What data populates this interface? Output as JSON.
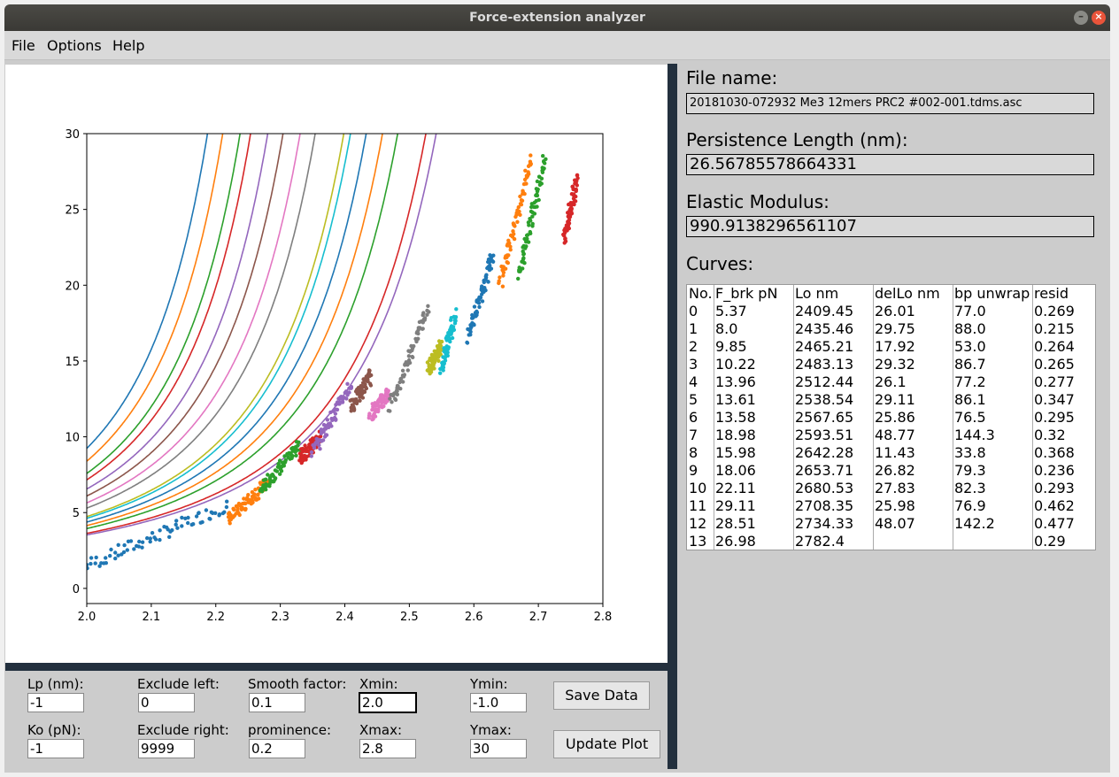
{
  "window": {
    "title": "Force-extension analyzer",
    "minimize_glyph": "–",
    "close_glyph": "×"
  },
  "menu": [
    "File",
    "Options",
    "Help"
  ],
  "chart_data": {
    "type": "scatter",
    "title": "",
    "xlabel": "",
    "ylabel": "",
    "xlim": [
      2.0,
      2.8
    ],
    "ylim": [
      -1.0,
      30
    ],
    "x_ticks": [
      "2.0",
      "2.1",
      "2.2",
      "2.3",
      "2.4",
      "2.5",
      "2.6",
      "2.7",
      "2.8"
    ],
    "y_ticks": [
      "0",
      "5",
      "10",
      "15",
      "20",
      "25",
      "30"
    ],
    "grid": false,
    "legend": "none",
    "series": [
      {
        "color": "#1f77b4",
        "x_range": [
          2.0,
          2.22
        ],
        "y_range": [
          1.5,
          5.5
        ],
        "Lo": 2.4095
      },
      {
        "color": "#ff7f0e",
        "x_range": [
          2.22,
          2.28
        ],
        "y_range": [
          4.5,
          7.0
        ],
        "Lo": 2.4355
      },
      {
        "color": "#2ca02c",
        "x_range": [
          2.27,
          2.33
        ],
        "y_range": [
          6.5,
          9.5
        ],
        "Lo": 2.4652
      },
      {
        "color": "#d62728",
        "x_range": [
          2.33,
          2.36
        ],
        "y_range": [
          8.5,
          10.0
        ],
        "Lo": 2.4831
      },
      {
        "color": "#9467bd",
        "x_range": [
          2.35,
          2.41
        ],
        "y_range": [
          9.0,
          13.5
        ],
        "Lo": 2.5124
      },
      {
        "color": "#8c564b",
        "x_range": [
          2.41,
          2.44
        ],
        "y_range": [
          12.0,
          14.0
        ],
        "Lo": 2.5385
      },
      {
        "color": "#e377c2",
        "x_range": [
          2.44,
          2.47
        ],
        "y_range": [
          11.5,
          13.0
        ],
        "Lo": 2.5677
      },
      {
        "color": "#7f7f7f",
        "x_range": [
          2.47,
          2.53
        ],
        "y_range": [
          12.0,
          18.5
        ],
        "Lo": 2.5935
      },
      {
        "color": "#bcbd22",
        "x_range": [
          2.53,
          2.55
        ],
        "y_range": [
          14.5,
          16.0
        ],
        "Lo": 2.6423
      },
      {
        "color": "#17becf",
        "x_range": [
          2.55,
          2.57
        ],
        "y_range": [
          14.5,
          18.0
        ],
        "Lo": 2.6537
      },
      {
        "color": "#1f77b4",
        "x_range": [
          2.59,
          2.63
        ],
        "y_range": [
          16.5,
          22.0
        ],
        "Lo": 2.6805
      },
      {
        "color": "#ff7f0e",
        "x_range": [
          2.64,
          2.69
        ],
        "y_range": [
          20.0,
          28.5
        ],
        "Lo": 2.7084
      },
      {
        "color": "#2ca02c",
        "x_range": [
          2.67,
          2.71
        ],
        "y_range": [
          20.5,
          28.5
        ],
        "Lo": 2.7343
      },
      {
        "color": "#d62728",
        "x_range": [
          2.74,
          2.76
        ],
        "y_range": [
          23.0,
          27.0
        ],
        "Lo": 2.7824
      },
      {
        "color": "#9467bd",
        "x_range": null,
        "y_range": null,
        "Lo": 2.8
      }
    ]
  },
  "controls": {
    "lp_label": "Lp (nm):",
    "lp_value": "-1",
    "ko_label": "Ko (pN):",
    "ko_value": "-1",
    "exclude_left_label": "Exclude left:",
    "exclude_left_value": "0",
    "exclude_right_label": "Exclude right:",
    "exclude_right_value": "9999",
    "smooth_label": "Smooth factor:",
    "smooth_value": "0.1",
    "prominence_label": "prominence:",
    "prominence_value": "0.2",
    "xmin_label": "Xmin:",
    "xmin_value": "2.0",
    "xmax_label": "Xmax:",
    "xmax_value": "2.8",
    "ymin_label": "Ymin:",
    "ymin_value": "-1.0",
    "ymax_label": "Ymax:",
    "ymax_value": "30",
    "save_button": "Save Data",
    "update_button": "Update Plot"
  },
  "info": {
    "file_label": "File name:",
    "file_value": "20181030-072932 Me3 12mers PRC2 #002-001.tdms.asc",
    "lp_label": "Persistence Length (nm):",
    "lp_value": "26.56785578664331",
    "em_label": "Elastic Modulus:",
    "em_value": "990.9138296561107",
    "curves_label": "Curves:"
  },
  "curves_table": {
    "headers": [
      "No.",
      "F_brk pN",
      "Lo nm",
      "delLo nm",
      "bp unwrap",
      "resid"
    ],
    "columns": [
      [
        "0",
        "1",
        "2",
        "3",
        "4",
        "5",
        "6",
        "7",
        "8",
        "9",
        "10",
        "11",
        "12",
        "13"
      ],
      [
        "5.37",
        "8.0",
        "9.85",
        "10.22",
        "13.96",
        "13.61",
        "13.58",
        "18.98",
        "15.98",
        "18.06",
        "22.11",
        "29.11",
        "28.51",
        "26.98"
      ],
      [
        "2409.45",
        "2435.46",
        "2465.21",
        "2483.13",
        "2512.44",
        "2538.54",
        "2567.65",
        "2593.51",
        "2642.28",
        "2653.71",
        "2680.53",
        "2708.35",
        "2734.33",
        "2782.4"
      ],
      [
        "26.01",
        "29.75",
        "17.92",
        "29.32",
        "26.1",
        "29.11",
        "25.86",
        "48.77",
        "11.43",
        "26.82",
        "27.83",
        "25.98",
        "48.07",
        ""
      ],
      [
        "77.0",
        "88.0",
        "53.0",
        "86.7",
        "77.2",
        "86.1",
        "76.5",
        "144.3",
        "33.8",
        "79.3",
        "82.3",
        "76.9",
        "142.2",
        ""
      ],
      [
        "0.269",
        "0.215",
        "0.264",
        "0.265",
        "0.277",
        "0.347",
        "0.295",
        "0.32",
        "0.368",
        "0.236",
        "0.293",
        "0.462",
        "0.477",
        "0.29"
      ]
    ]
  }
}
